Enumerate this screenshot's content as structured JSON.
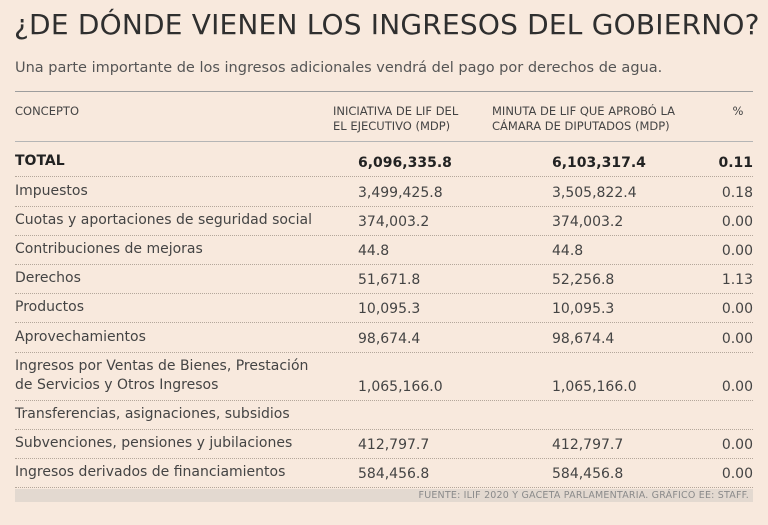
{
  "chart_data": {
    "type": "table",
    "title": "¿DE DÓNDE VIENEN LOS INGRESOS DEL GOBIERNO?",
    "subtitle": "Una parte importante de los ingresos adicionales vendrá del pago por derechos de agua.",
    "columns": {
      "concepto": "CONCEPTO",
      "iniciativa_line1": "INICIATIVA DE LIF DEL",
      "iniciativa_line2": "EL EJECUTIVO (MDP)",
      "minuta_line1": "MINUTA DE LIF QUE APROBÓ LA",
      "minuta_line2": "CÁMARA DE DIPUTADOS (MDP)",
      "pct": "%"
    },
    "rows": [
      {
        "concepto": "TOTAL",
        "concepto2": "",
        "iniciativa": "6,096,335.8",
        "minuta": "6,103,317.4",
        "pct": "0.11"
      },
      {
        "concepto": "Impuestos",
        "concepto2": "",
        "iniciativa": "3,499,425.8",
        "minuta": "3,505,822.4",
        "pct": "0.18"
      },
      {
        "concepto": "Cuotas y aportaciones de seguridad social",
        "concepto2": "",
        "iniciativa": "374,003.2",
        "minuta": "374,003.2",
        "pct": "0.00"
      },
      {
        "concepto": "Contribuciones de mejoras",
        "concepto2": "",
        "iniciativa": "44.8",
        "minuta": "44.8",
        "pct": "0.00"
      },
      {
        "concepto": "Derechos",
        "concepto2": "",
        "iniciativa": "51,671.8",
        "minuta": "52,256.8",
        "pct": "1.13"
      },
      {
        "concepto": "Productos",
        "concepto2": "",
        "iniciativa": "10,095.3",
        "minuta": "10,095.3",
        "pct": "0.00"
      },
      {
        "concepto": "Aprovechamientos",
        "concepto2": "",
        "iniciativa": "98,674.4",
        "minuta": "98,674.4",
        "pct": "0.00"
      },
      {
        "concepto": "Ingresos por Ventas de Bienes, Prestación",
        "concepto2": "de Servicios y Otros Ingresos",
        "iniciativa": "1,065,166.0",
        "minuta": "1,065,166.0",
        "pct": "0.00"
      },
      {
        "concepto": "Transferencias, asignaciones, subsidios",
        "concepto2": "",
        "iniciativa": "",
        "minuta": "",
        "pct": ""
      },
      {
        "concepto": "Subvenciones, pensiones y jubilaciones",
        "concepto2": "",
        "iniciativa": "412,797.7",
        "minuta": "412,797.7",
        "pct": "0.00"
      },
      {
        "concepto": "Ingresos derivados de financiamientos",
        "concepto2": "",
        "iniciativa": "584,456.8",
        "minuta": "584,456.8",
        "pct": "0.00"
      }
    ],
    "source": "FUENTE: ILIF 2020 Y GACETA PARLAMENTARIA. GRÁFICO EE: STAFF."
  },
  "colors": {
    "background": "#f8e9dd",
    "footer_band": "#e3d9d0",
    "text": "#444444"
  }
}
